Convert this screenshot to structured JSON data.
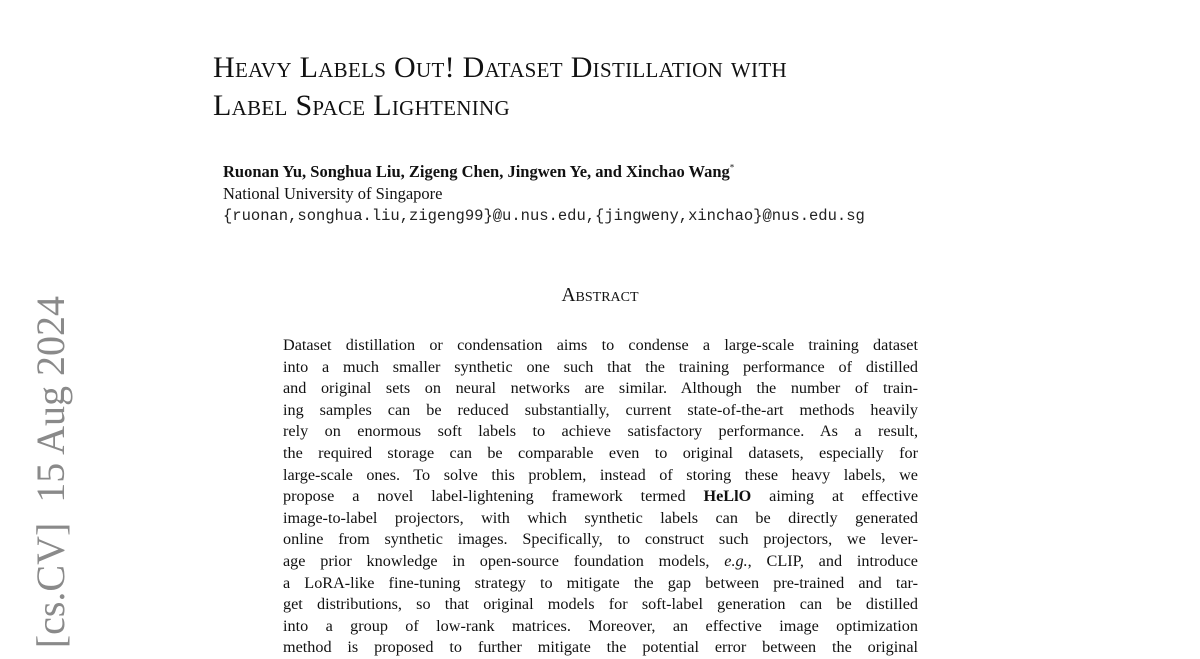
{
  "side_stamp": "[cs.CV]  15 Aug 2024",
  "header": {
    "title_lines": [
      "Heavy Labels Out! Dataset Distillation with",
      "Label Space Lightening"
    ],
    "authors": "Ruonan Yu, Songhua Liu, Zigeng Chen, Jingwen Ye, and Xinchao Wang",
    "author_mark": "*",
    "affiliation": "National University of Singapore",
    "emails": "{ruonan,songhua.liu,zigeng99}@u.nus.edu,{jingweny,xinchao}@nus.edu.sg"
  },
  "abstract": {
    "heading": "Abstract",
    "lines": [
      [
        "Dataset distillation or condensation aims to condense a large-scale training dataset"
      ],
      [
        "into a much smaller synthetic one such that the training performance of distilled"
      ],
      [
        "and original sets on neural networks are similar.  Although the number of train-"
      ],
      [
        "ing samples can be reduced substantially, current state-of-the-art methods heavily"
      ],
      [
        "rely on enormous soft labels to achieve satisfactory performance.  As a result,"
      ],
      [
        "the required storage can be comparable even to original datasets, especially for"
      ],
      [
        "large-scale ones. To solve this problem, instead of storing these heavy labels, we"
      ],
      [
        "propose a novel label-lightening framework termed ",
        "HeLlO",
        " aiming at effective"
      ],
      [
        "image-to-label projectors, with which synthetic labels can be directly generated"
      ],
      [
        "online from synthetic images. Specifically, to construct such projectors, we lever-"
      ],
      [
        "age prior knowledge in open-source foundation models, ",
        "e.g.",
        ", CLIP, and introduce"
      ],
      [
        "a LoRA-like fine-tuning strategy to mitigate the gap between pre-trained and tar-"
      ],
      [
        "get distributions, so that original models for soft-label generation can be distilled"
      ],
      [
        "into a group of low-rank matrices.  Moreover, an effective image optimization"
      ],
      [
        "method is proposed to further mitigate the potential error between the original"
      ]
    ]
  }
}
